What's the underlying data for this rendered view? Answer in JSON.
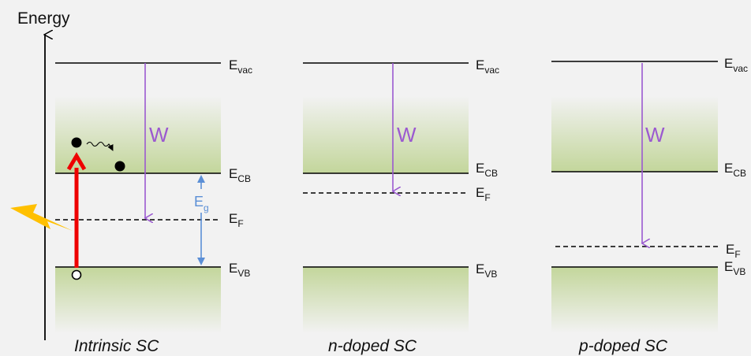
{
  "axis_label": "Energy",
  "colors": {
    "background": "#f2f2f2",
    "band_fill": "#c3d69b",
    "work_function_arrow": "#9b59d0",
    "gap_arrow": "#5b8fd6",
    "excitation_arrow": "#ee0000",
    "lightning": "#ffc000"
  },
  "icons": [
    "lightning-icon",
    "electron-dot",
    "hole-circle",
    "wavy-arrow"
  ],
  "panels": [
    {
      "caption": "Intrinsic SC",
      "work_function_label": "W",
      "gap_label": {
        "base": "E",
        "sub": "g"
      },
      "levels": [
        {
          "base": "E",
          "sub": "vac"
        },
        {
          "base": "E",
          "sub": "CB"
        },
        {
          "base": "E",
          "sub": "F"
        },
        {
          "base": "E",
          "sub": "VB"
        }
      ]
    },
    {
      "caption": "n-doped SC",
      "work_function_label": "W",
      "levels": [
        {
          "base": "E",
          "sub": "vac"
        },
        {
          "base": "E",
          "sub": "CB"
        },
        {
          "base": "E",
          "sub": "F"
        },
        {
          "base": "E",
          "sub": "VB"
        }
      ]
    },
    {
      "caption": "p-doped SC",
      "work_function_label": "W",
      "levels": [
        {
          "base": "E",
          "sub": "vac"
        },
        {
          "base": "E",
          "sub": "CB"
        },
        {
          "base": "E",
          "sub": "F"
        },
        {
          "base": "E",
          "sub": "VB"
        }
      ]
    }
  ]
}
